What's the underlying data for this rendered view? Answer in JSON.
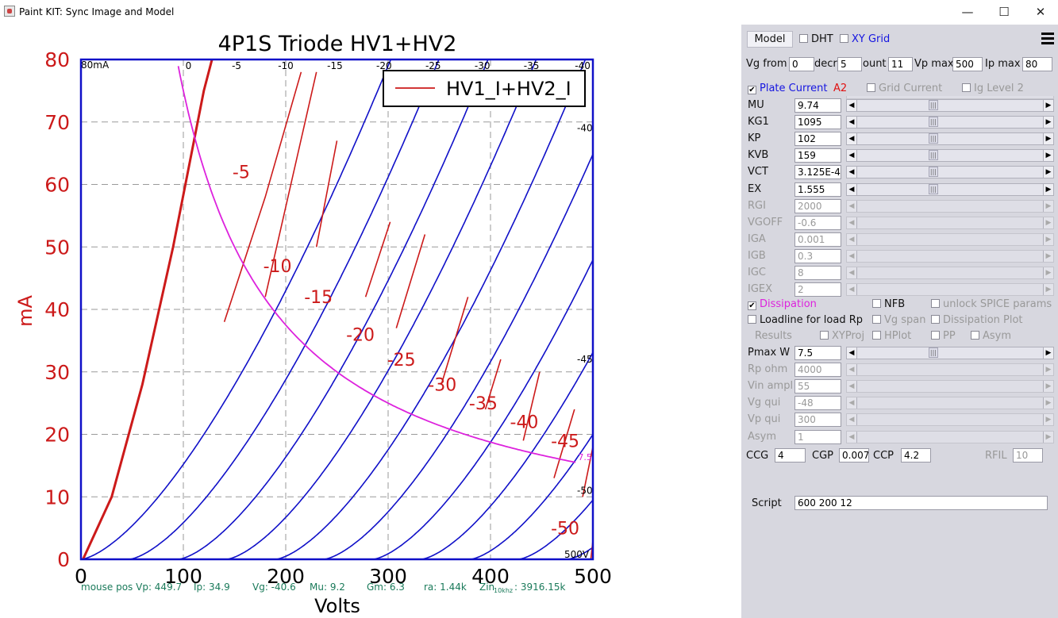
{
  "window": {
    "title": "Paint KIT: Sync Image and Model",
    "minimize": "—",
    "maximize": "☐",
    "close": "✕"
  },
  "chart_data": {
    "type": "line",
    "title": "4P1S Triode HV1+HV2",
    "xlabel": "Volts",
    "ylabel": "mA",
    "xlim": [
      0,
      500
    ],
    "ylim": [
      0,
      80
    ],
    "x_ticks": [
      "0",
      "100",
      "200",
      "300",
      "400",
      "500"
    ],
    "y_ticks": [
      "0",
      "10",
      "20",
      "30",
      "40",
      "50",
      "60",
      "70",
      "80"
    ],
    "grid": true,
    "legend": {
      "position": "top-right",
      "entries": [
        "HV1_I+HV2_I"
      ]
    },
    "corner_labels": {
      "top_left": "80mA",
      "bottom_right": "500V"
    },
    "top_grid_labels": [
      {
        "label": "0",
        "v": 105
      },
      {
        "label": "-5",
        "v": 152
      },
      {
        "label": "-10",
        "v": 200
      },
      {
        "label": "-15",
        "v": 248
      },
      {
        "label": "-20",
        "v": 296
      },
      {
        "label": "-25",
        "v": 344
      },
      {
        "label": "-30",
        "v": 392
      },
      {
        "label": "-35",
        "v": 440
      },
      {
        "label": "-40",
        "v": 490
      }
    ],
    "right_grid_labels": [
      {
        "label": "-40",
        "mA": 69
      },
      {
        "label": "-45",
        "mA": 32
      },
      {
        "label": "-50",
        "mA": 11
      }
    ],
    "curve_labels": [
      {
        "label": "-5",
        "v": 148,
        "mA": 61
      },
      {
        "label": "-10",
        "v": 178,
        "mA": 46
      },
      {
        "label": "-15",
        "v": 218,
        "mA": 41
      },
      {
        "label": "-20",
        "v": 259,
        "mA": 35
      },
      {
        "label": "-25",
        "v": 299,
        "mA": 31
      },
      {
        "label": "-30",
        "v": 339,
        "mA": 27
      },
      {
        "label": "-35",
        "v": 379,
        "mA": 24
      },
      {
        "label": "-40",
        "v": 419,
        "mA": 21
      },
      {
        "label": "-45",
        "v": 459,
        "mA": 18
      },
      {
        "label": "-50",
        "v": 459,
        "mA": 4
      }
    ],
    "model_curves": [
      {
        "vg": 0,
        "v0": 0,
        "k": 0.0152
      },
      {
        "vg": -5,
        "v0": 47,
        "k": 0.0152
      },
      {
        "vg": -10,
        "v0": 95,
        "k": 0.0152
      },
      {
        "vg": -15,
        "v0": 142,
        "k": 0.0152
      },
      {
        "vg": -20,
        "v0": 190,
        "k": 0.0152
      },
      {
        "vg": -25,
        "v0": 237,
        "k": 0.0152
      },
      {
        "vg": -30,
        "v0": 285,
        "k": 0.0152
      },
      {
        "vg": -35,
        "v0": 332,
        "k": 0.0152
      },
      {
        "vg": -40,
        "v0": 380,
        "k": 0.0152
      },
      {
        "vg": -45,
        "v0": 427,
        "k": 0.0152
      },
      {
        "vg": -50,
        "v0": 475,
        "k": 0.0152
      }
    ],
    "measured_segments": [
      [
        [
          2,
          0
        ],
        [
          30,
          10
        ],
        [
          60,
          28
        ],
        [
          90,
          50
        ],
        [
          120,
          75
        ],
        [
          128,
          80
        ]
      ],
      [
        [
          140,
          38
        ],
        [
          180,
          58
        ],
        [
          215,
          78
        ]
      ],
      [
        [
          180,
          42
        ],
        [
          230,
          78
        ]
      ],
      [
        [
          230,
          50
        ],
        [
          250,
          67
        ]
      ],
      [
        [
          278,
          42
        ],
        [
          302,
          54
        ]
      ],
      [
        [
          308,
          37
        ],
        [
          336,
          52
        ]
      ],
      [
        [
          352,
          28
        ],
        [
          378,
          42
        ]
      ],
      [
        [
          395,
          24
        ],
        [
          410,
          32
        ]
      ],
      [
        [
          432,
          19
        ],
        [
          448,
          30
        ]
      ],
      [
        [
          462,
          13
        ],
        [
          482,
          24
        ]
      ],
      [
        [
          490,
          10
        ],
        [
          500,
          18
        ]
      ],
      [
        [
          498,
          0
        ],
        [
          500,
          3
        ]
      ]
    ],
    "dissipation_curve": {
      "pmax_w": 7.5,
      "label": "7.5",
      "v_from": 95,
      "v_to": 484
    },
    "status_bar": {
      "mouse_pos": "mouse pos Vp: 449.7",
      "ip": "Ip: 34.9",
      "vg": "Vg: -40.6",
      "mu": "Mu: 9.2",
      "gm": "Gm: 6.3",
      "ra": "ra: 1.44k",
      "zin": "Zin",
      "zin_sub": "10khz",
      "zin_val": ": 3916.15k"
    }
  },
  "panel": {
    "model_button": "Model",
    "dht_label": "DHT",
    "xygrid_label": "XY Grid",
    "menu_icon": "hamburger-icon",
    "row1": {
      "vg_from_label": "Vg from",
      "vg_from": "0",
      "decr_label": "decr",
      "decr": "5",
      "count_label": "ount",
      "count": "11",
      "vpmax_label": "Vp max",
      "vpmax": "500",
      "ipmax_label": "Ip max",
      "ipmax": "80"
    },
    "plate_current_label": "Plate Current",
    "a2_label": "A2",
    "grid_current_label": "Grid Current",
    "ig_level_label": "Ig Level 2",
    "params": [
      {
        "name": "MU",
        "value": "9.74",
        "pos": 0.41,
        "enabled": true
      },
      {
        "name": "KG1",
        "value": "1095",
        "pos": 0.41,
        "enabled": true
      },
      {
        "name": "KP",
        "value": "102",
        "pos": 0.41,
        "enabled": true
      },
      {
        "name": "KVB",
        "value": "159",
        "pos": 0.41,
        "enabled": true
      },
      {
        "name": "VCT",
        "value": "3.125E-4",
        "pos": 0.41,
        "enabled": true
      },
      {
        "name": "EX",
        "value": "1.555",
        "pos": 0.41,
        "enabled": true
      },
      {
        "name": "RGI",
        "value": "2000",
        "pos": null,
        "enabled": false
      },
      {
        "name": "VGOFF",
        "value": "-0.6",
        "pos": null,
        "enabled": false
      },
      {
        "name": "IGA",
        "value": "0.001",
        "pos": null,
        "enabled": false
      },
      {
        "name": "IGB",
        "value": "0.3",
        "pos": null,
        "enabled": false
      },
      {
        "name": "IGC",
        "value": "8",
        "pos": null,
        "enabled": false
      },
      {
        "name": "IGEX",
        "value": "2",
        "pos": null,
        "enabled": false
      }
    ],
    "dissipation_label": "Dissipation",
    "nfb_label": "NFB",
    "unlock_spice_label": "unlock SPICE params",
    "loadline_label": "Loadline for load Rp",
    "vg_span_label": "Vg span",
    "dissipation_plot_label": "Dissipation Plot",
    "results_label": "Results",
    "xyproj_label": "XYProj",
    "hplot_label": "HPlot",
    "pp_label": "PP",
    "asym_cb_label": "Asym",
    "params2": [
      {
        "name": "Pmax W",
        "value": "7.5",
        "pos": 0.41,
        "enabled": true
      },
      {
        "name": "Rp ohm",
        "value": "4000",
        "pos": null,
        "enabled": false
      },
      {
        "name": "Vin ampl",
        "value": "55",
        "pos": null,
        "enabled": false
      },
      {
        "name": "Vg qui",
        "value": "-48",
        "pos": null,
        "enabled": false
      },
      {
        "name": "Vp qui",
        "value": "300",
        "pos": null,
        "enabled": false
      },
      {
        "name": "Asym",
        "value": "1",
        "pos": null,
        "enabled": false
      }
    ],
    "ccg_label": "CCG",
    "ccg": "4",
    "cgp_label": "CGP",
    "cgp": "0.007",
    "ccp_label": "CCP",
    "ccp": "4.2",
    "rfil_label": "RFIL",
    "rfil": "10",
    "script_label": "Script",
    "script_value": "600 200 12",
    "colors": {
      "model": "#1010c8",
      "measured": "#cc1a1a",
      "dissipation": "#dd22dd",
      "axis_text": "#cc1a1a",
      "plate_current": "#1515e0",
      "xygrid": "#1515e0",
      "a2": "#e01010",
      "dissipation_label": "#dd22dd",
      "status": "#1a7a5a"
    }
  }
}
